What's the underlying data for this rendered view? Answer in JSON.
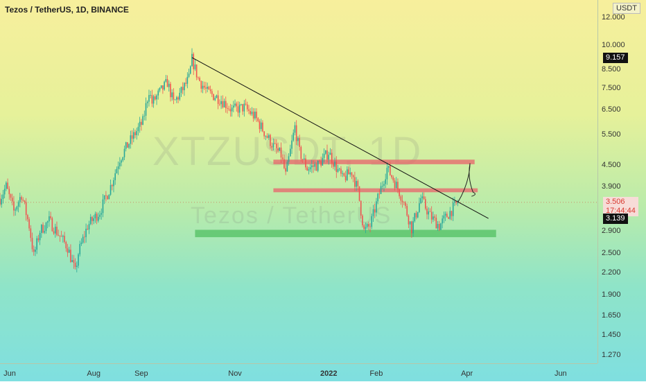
{
  "header": {
    "title": "Tezos / TetherUS, 1D, BINANCE"
  },
  "watermark": {
    "symbol": "XTZUSDT, 1D",
    "name": "Tezos / TetherUS"
  },
  "price_axis": {
    "currency": "USDT",
    "ticks": [
      "12.000",
      "10.000",
      "8.500",
      "7.500",
      "6.500",
      "5.500",
      "4.500",
      "3.900",
      "2.900",
      "2.500",
      "2.200",
      "1.900",
      "1.650",
      "1.450",
      "1.270"
    ],
    "badges": {
      "high": "9.157",
      "last": "3.506",
      "countdown": "17:44:44",
      "low": "3.139"
    }
  },
  "time_axis": {
    "ticks": [
      {
        "label": "Jun",
        "bold": false
      },
      {
        "label": "Aug",
        "bold": false
      },
      {
        "label": "Sep",
        "bold": false
      },
      {
        "label": "Nov",
        "bold": false
      },
      {
        "label": "2022",
        "bold": true
      },
      {
        "label": "Feb",
        "bold": false
      },
      {
        "label": "Apr",
        "bold": false
      },
      {
        "label": "Jun",
        "bold": false
      }
    ]
  },
  "chart_data": {
    "type": "candlestick",
    "scale": "log",
    "title": "Tezos / TetherUS, 1D, BINANCE",
    "ylim": [
      1.2,
      13.5
    ],
    "x_range": [
      "2021-06-01",
      "2022-06-25"
    ],
    "colors": {
      "up": "#26a69a",
      "down": "#ef5350",
      "trendline": "#111111",
      "resistance": "#e8636b",
      "support": "#5cc46b",
      "projection": "#222222"
    },
    "series": [
      {
        "name": "XTZUSDT",
        "close_path": [
          [
            "2021-06-01",
            3.6
          ],
          [
            "2021-06-05",
            3.9
          ],
          [
            "2021-06-10",
            3.3
          ],
          [
            "2021-06-15",
            3.7
          ],
          [
            "2021-06-20",
            3.0
          ],
          [
            "2021-06-23",
            2.45
          ],
          [
            "2021-06-27",
            2.9
          ],
          [
            "2021-07-03",
            3.1
          ],
          [
            "2021-07-10",
            2.8
          ],
          [
            "2021-07-15",
            2.6
          ],
          [
            "2021-07-20",
            2.2
          ],
          [
            "2021-07-22",
            2.5
          ],
          [
            "2021-07-28",
            3.0
          ],
          [
            "2021-08-05",
            3.3
          ],
          [
            "2021-08-12",
            3.9
          ],
          [
            "2021-08-18",
            4.7
          ],
          [
            "2021-08-25",
            5.3
          ],
          [
            "2021-09-02",
            6.0
          ],
          [
            "2021-09-06",
            7.4
          ],
          [
            "2021-09-08",
            6.8
          ],
          [
            "2021-09-12",
            7.2
          ],
          [
            "2021-09-18",
            7.8
          ],
          [
            "2021-09-22",
            6.8
          ],
          [
            "2021-09-26",
            7.2
          ],
          [
            "2021-10-02",
            8.0
          ],
          [
            "2021-10-04",
            9.1
          ],
          [
            "2021-10-08",
            8.0
          ],
          [
            "2021-10-14",
            7.3
          ],
          [
            "2021-10-22",
            7.0
          ],
          [
            "2021-10-30",
            6.5
          ],
          [
            "2021-11-07",
            6.6
          ],
          [
            "2021-11-14",
            6.2
          ],
          [
            "2021-11-20",
            5.6
          ],
          [
            "2021-11-26",
            5.1
          ],
          [
            "2021-12-01",
            4.8
          ],
          [
            "2021-12-04",
            4.2
          ],
          [
            "2021-12-10",
            5.8
          ],
          [
            "2021-12-13",
            4.9
          ],
          [
            "2021-12-18",
            4.4
          ],
          [
            "2021-12-25",
            4.5
          ],
          [
            "2022-01-01",
            4.9
          ],
          [
            "2022-01-05",
            4.5
          ],
          [
            "2022-01-10",
            4.1
          ],
          [
            "2022-01-16",
            4.3
          ],
          [
            "2022-01-20",
            3.8
          ],
          [
            "2022-01-24",
            2.9
          ],
          [
            "2022-01-28",
            3.0
          ],
          [
            "2022-02-02",
            3.6
          ],
          [
            "2022-02-08",
            4.4
          ],
          [
            "2022-02-12",
            4.1
          ],
          [
            "2022-02-18",
            3.6
          ],
          [
            "2022-02-24",
            2.95
          ],
          [
            "2022-03-02",
            3.6
          ],
          [
            "2022-03-08",
            3.2
          ],
          [
            "2022-03-14",
            3.0
          ],
          [
            "2022-03-20",
            3.25
          ],
          [
            "2022-03-26",
            3.5
          ]
        ]
      }
    ],
    "annotations": [
      {
        "type": "trendline",
        "from": [
          "2021-10-04",
          9.2
        ],
        "to": [
          "2022-04-15",
          3.15
        ]
      },
      {
        "type": "zone",
        "kind": "resistance",
        "from": "2021-11-26",
        "to": "2022-04-06",
        "low": 4.52,
        "high": 4.66
      },
      {
        "type": "zone",
        "kind": "resistance",
        "from": "2021-11-26",
        "to": "2022-04-08",
        "low": 3.75,
        "high": 3.85
      },
      {
        "type": "zone",
        "kind": "support",
        "from": "2021-10-06",
        "to": "2022-04-20",
        "low": 2.78,
        "high": 2.92
      },
      {
        "type": "projection_path",
        "points": [
          [
            "2022-03-26",
            3.5
          ],
          [
            "2022-04-03",
            4.55
          ],
          [
            "2022-04-05",
            3.75
          ],
          [
            "2022-04-04",
            3.65
          ]
        ]
      }
    ]
  }
}
